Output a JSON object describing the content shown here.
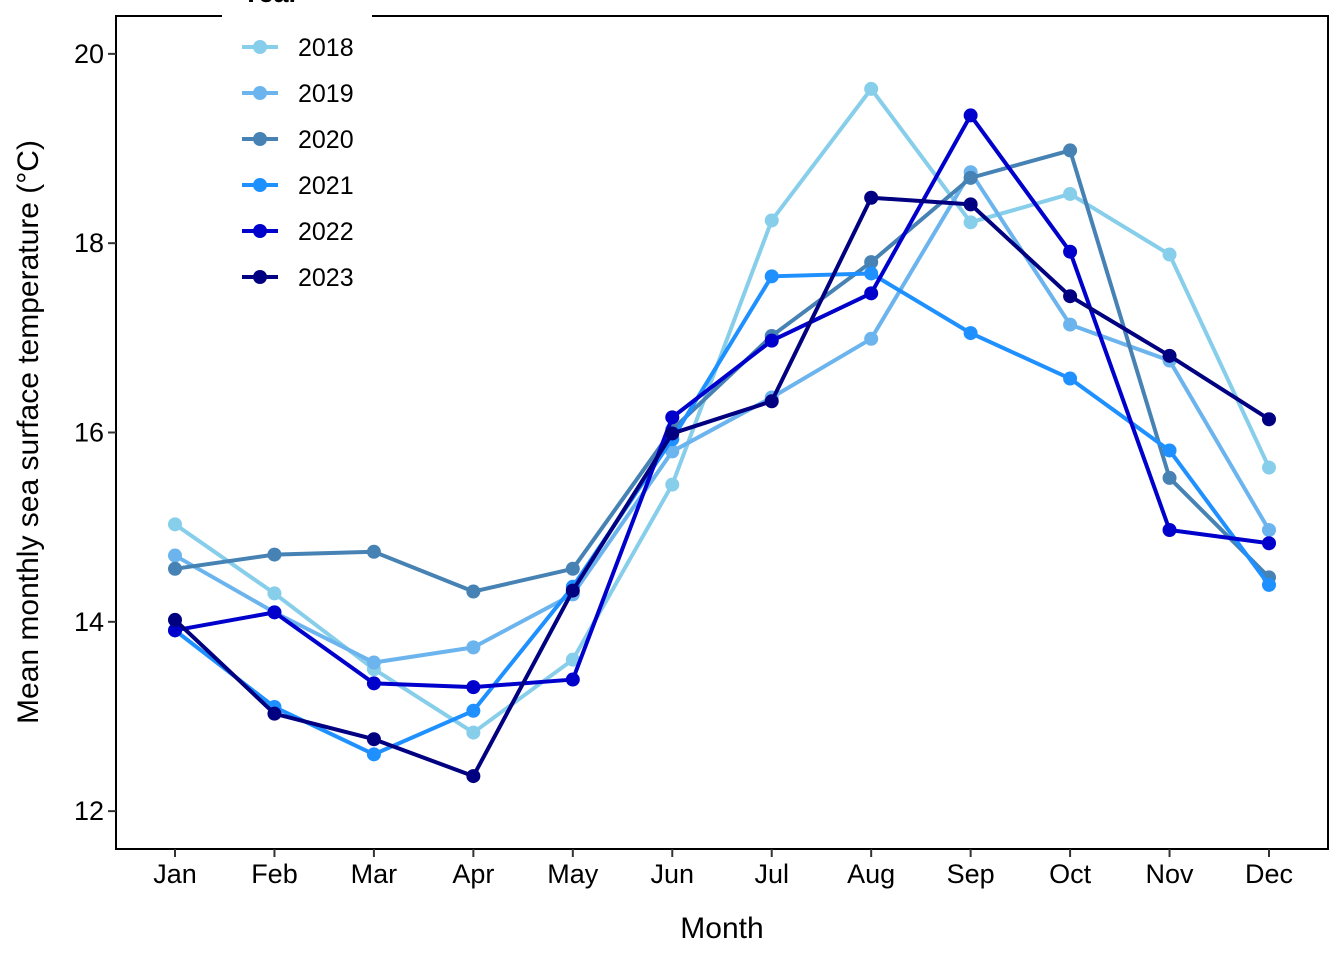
{
  "chart_data": {
    "type": "line",
    "xlabel": "Month",
    "ylabel": "Mean monthly sea surface temperature (°C)",
    "categories": [
      "Jan",
      "Feb",
      "Mar",
      "Apr",
      "May",
      "Jun",
      "Jul",
      "Aug",
      "Sep",
      "Oct",
      "Nov",
      "Dec"
    ],
    "ylim": [
      11.6,
      20.4
    ],
    "yticks": [
      "12",
      "14",
      "16",
      "18",
      "20"
    ],
    "grid": false,
    "legend": {
      "title": "Year",
      "placement": "top-left, inside plot"
    },
    "series": [
      {
        "name": "2018",
        "color": "#87CEEB",
        "values": [
          15.03,
          14.3,
          13.5,
          12.83,
          13.6,
          15.45,
          18.24,
          19.63,
          18.22,
          18.52,
          17.88,
          15.63
        ]
      },
      {
        "name": "2019",
        "color": "#6CB4EE",
        "values": [
          14.7,
          14.1,
          13.57,
          13.73,
          14.29,
          15.8,
          16.37,
          16.99,
          18.75,
          17.14,
          16.76,
          14.97
        ]
      },
      {
        "name": "2020",
        "color": "#4682B4",
        "values": [
          14.56,
          14.71,
          14.74,
          14.32,
          14.56,
          16.03,
          17.02,
          17.8,
          18.69,
          18.98,
          15.52,
          14.47
        ]
      },
      {
        "name": "2021",
        "color": "#1E90FF",
        "values": [
          13.91,
          13.1,
          12.6,
          13.06,
          14.37,
          15.93,
          17.65,
          17.68,
          17.05,
          16.57,
          15.81,
          14.39
        ]
      },
      {
        "name": "2022",
        "color": "#0000CD",
        "values": [
          13.91,
          14.1,
          13.35,
          13.31,
          13.39,
          16.16,
          16.97,
          17.47,
          19.35,
          17.91,
          14.97,
          14.83
        ]
      },
      {
        "name": "2023",
        "color": "#000080",
        "values": [
          14.02,
          13.03,
          12.76,
          12.37,
          14.33,
          15.99,
          16.33,
          18.48,
          18.41,
          17.44,
          16.81,
          16.14
        ]
      }
    ]
  }
}
